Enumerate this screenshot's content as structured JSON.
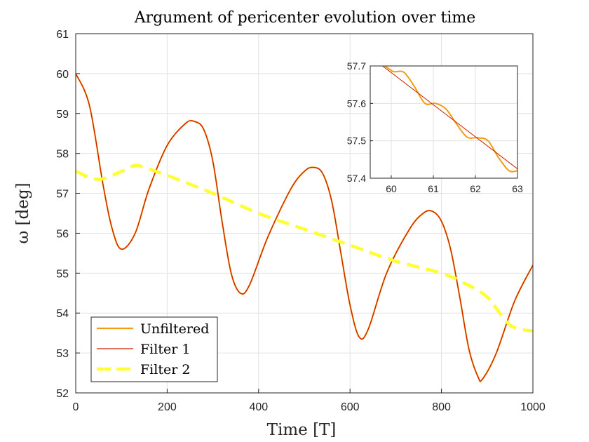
{
  "chart_data": {
    "type": "line",
    "title": "Argument of pericenter evolution over time",
    "xlabel": "Time [T]",
    "ylabel": "ω [deg]",
    "xlim": [
      0,
      1000
    ],
    "ylim": [
      52,
      61
    ],
    "xticks": [
      "0",
      "200",
      "400",
      "600",
      "800",
      "1000"
    ],
    "yticks": [
      "52",
      "53",
      "54",
      "55",
      "56",
      "57",
      "58",
      "59",
      "60",
      "61"
    ],
    "grid": true,
    "legend_position": "bottom-left",
    "colors": {
      "unfiltered": "#f39c12",
      "filter1": "#cc1f00",
      "filter2": "#ffff33"
    },
    "series": [
      {
        "name": "Unfiltered",
        "x": [
          0,
          30,
          60,
          80,
          100,
          130,
          160,
          200,
          240,
          260,
          280,
          300,
          320,
          340,
          360,
          380,
          420,
          470,
          500,
          520,
          540,
          560,
          580,
          600,
          620,
          640,
          680,
          730,
          760,
          780,
          800,
          820,
          840,
          860,
          880,
          890,
          920,
          960,
          1000
        ],
        "y": [
          60.0,
          59.2,
          57.2,
          56.1,
          55.6,
          56.0,
          57.1,
          58.2,
          58.75,
          58.8,
          58.6,
          57.8,
          56.3,
          55.0,
          54.5,
          54.7,
          55.9,
          57.1,
          57.55,
          57.65,
          57.5,
          56.8,
          55.5,
          54.2,
          53.4,
          53.6,
          55.0,
          56.1,
          56.5,
          56.55,
          56.3,
          55.6,
          54.4,
          53.1,
          52.4,
          52.35,
          53.0,
          54.3,
          55.2
        ]
      },
      {
        "name": "Filter 1",
        "x": [
          0,
          30,
          60,
          80,
          100,
          130,
          160,
          200,
          240,
          260,
          280,
          300,
          320,
          340,
          360,
          380,
          420,
          470,
          500,
          520,
          540,
          560,
          580,
          600,
          620,
          640,
          680,
          730,
          760,
          780,
          800,
          820,
          840,
          860,
          880,
          890,
          920,
          960,
          1000
        ],
        "y": [
          60.0,
          59.2,
          57.2,
          56.1,
          55.6,
          56.0,
          57.1,
          58.2,
          58.75,
          58.8,
          58.6,
          57.8,
          56.3,
          55.0,
          54.5,
          54.7,
          55.9,
          57.1,
          57.55,
          57.65,
          57.5,
          56.8,
          55.5,
          54.2,
          53.4,
          53.6,
          55.0,
          56.1,
          56.5,
          56.55,
          56.3,
          55.6,
          54.4,
          53.1,
          52.4,
          52.35,
          53.0,
          54.3,
          55.2
        ]
      },
      {
        "name": "Filter 2",
        "x": [
          0,
          50,
          100,
          130,
          150,
          200,
          300,
          400,
          500,
          600,
          700,
          800,
          850,
          900,
          950,
          1000
        ],
        "y": [
          57.55,
          57.35,
          57.55,
          57.7,
          57.65,
          57.45,
          57.0,
          56.5,
          56.1,
          55.7,
          55.3,
          55.0,
          54.75,
          54.4,
          53.7,
          53.55
        ]
      }
    ],
    "inset": {
      "xlim": [
        59.5,
        63
      ],
      "ylim": [
        57.4,
        57.7
      ],
      "xticks": [
        "60",
        "61",
        "62",
        "63"
      ],
      "yticks": [
        "57.4",
        "57.5",
        "57.6",
        "57.7"
      ],
      "grid": true,
      "series": [
        {
          "name": "Unfiltered",
          "x": [
            59.5,
            59.85,
            60.05,
            60.3,
            60.55,
            60.8,
            61.05,
            61.3,
            61.55,
            61.8,
            62.05,
            62.3,
            62.55,
            62.8,
            63.0
          ],
          "y": [
            57.725,
            57.7,
            57.685,
            57.683,
            57.645,
            57.6,
            57.6,
            57.585,
            57.545,
            57.51,
            57.508,
            57.5,
            57.455,
            57.42,
            57.42
          ]
        },
        {
          "name": "Filter 1",
          "x": [
            59.5,
            63.0
          ],
          "y": [
            57.725,
            57.425
          ]
        }
      ]
    }
  }
}
